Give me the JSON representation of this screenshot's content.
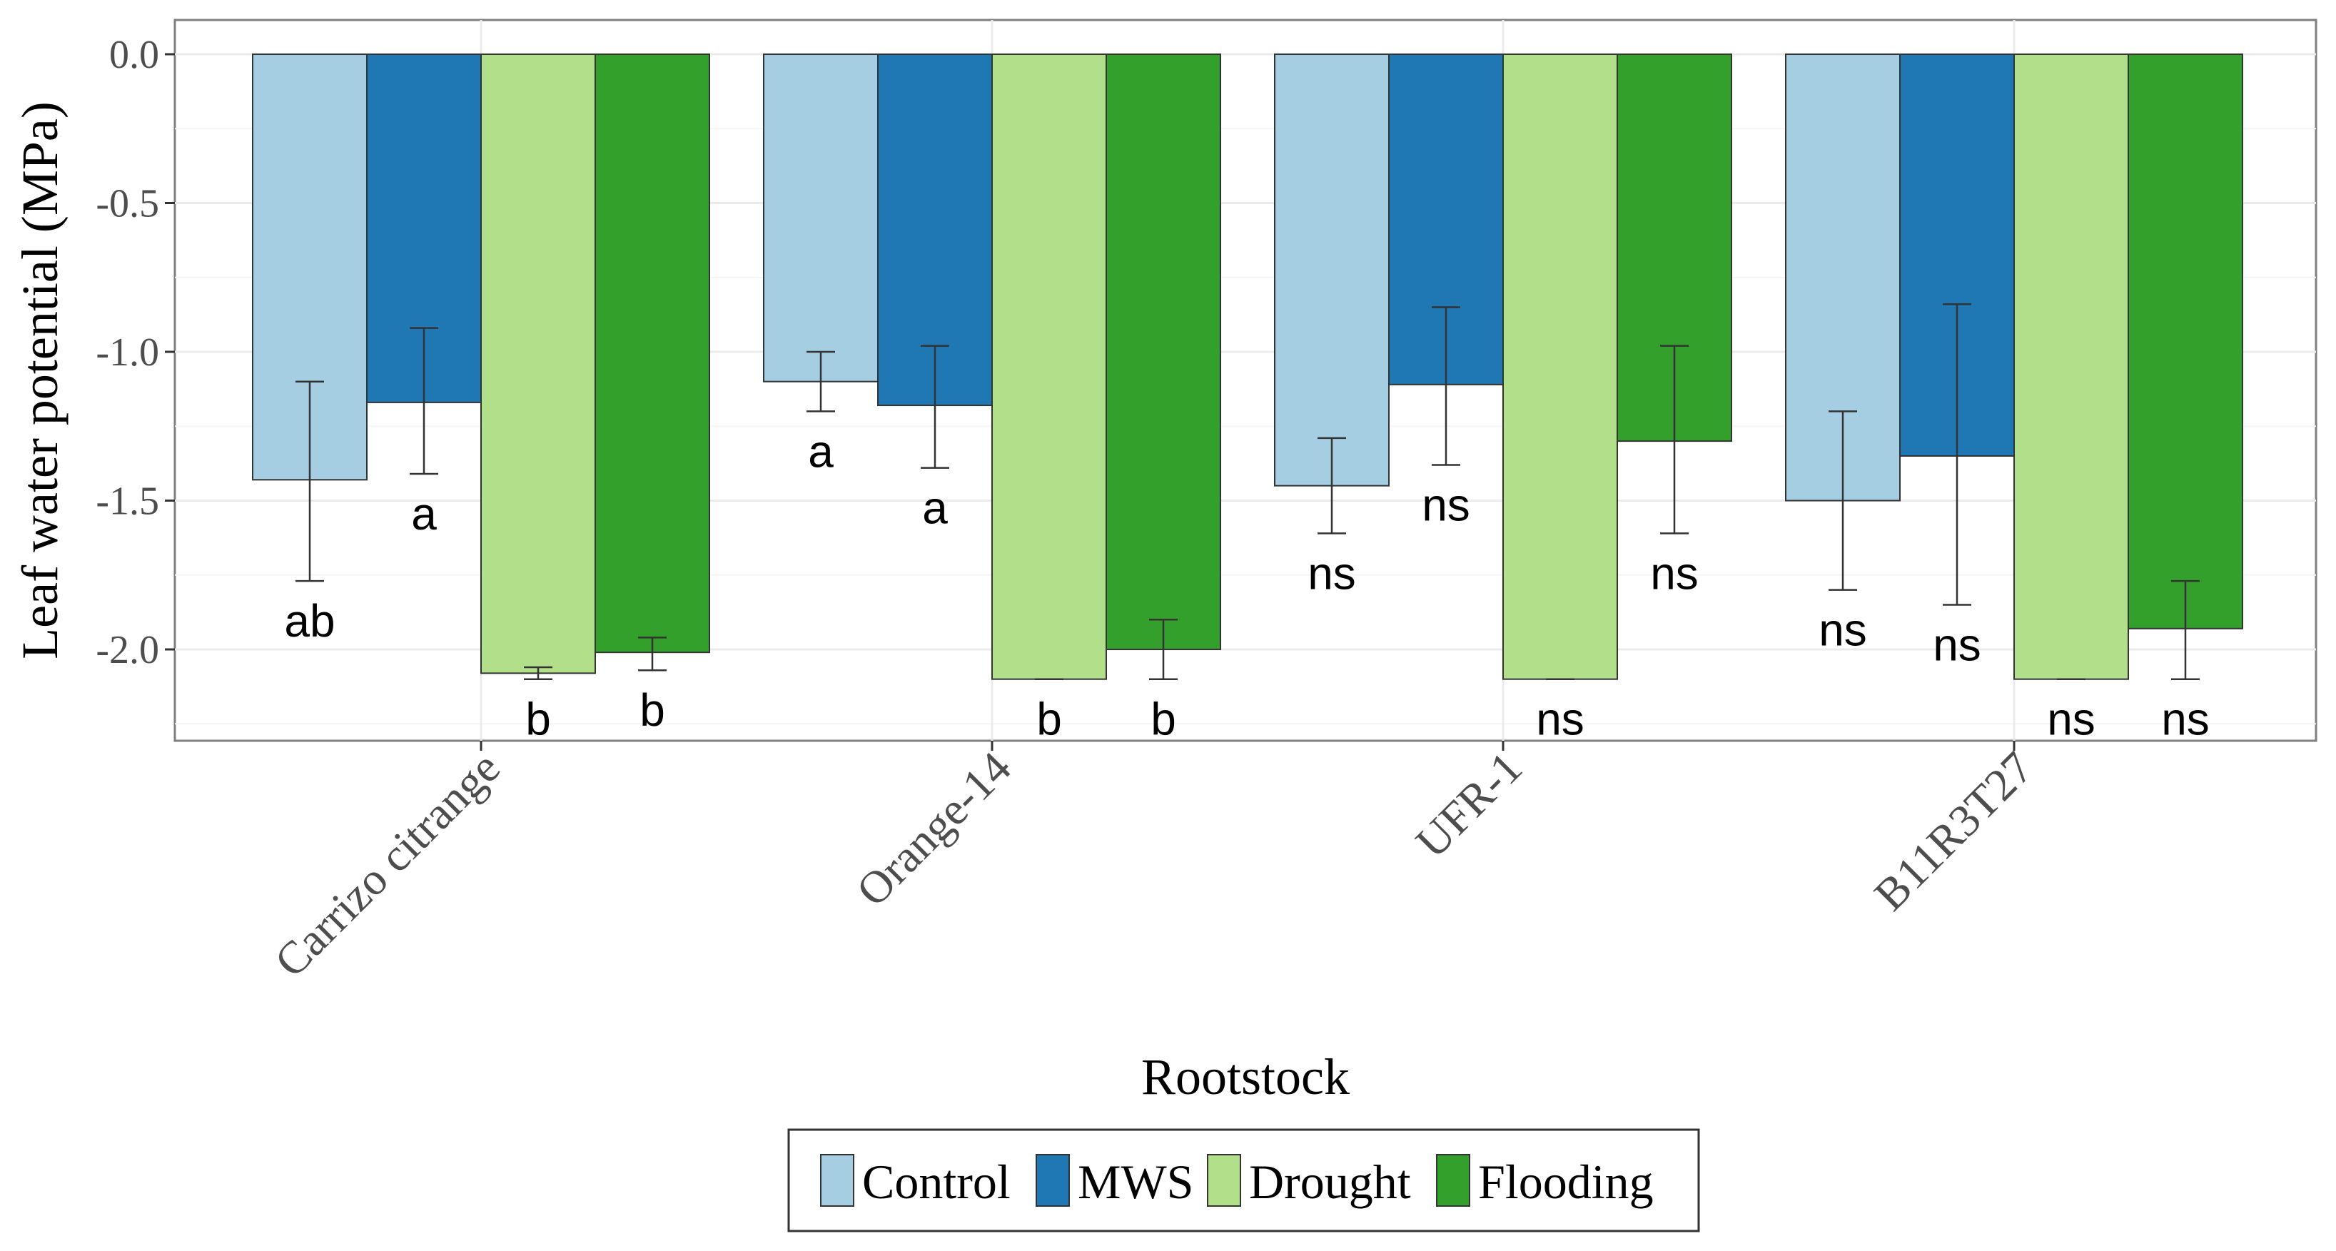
{
  "chart_data": {
    "type": "bar",
    "xlabel": "Rootstock",
    "ylabel": "Leaf water potential (MPa)",
    "ylim": [
      -2.3,
      0.12
    ],
    "yticks": [
      0.0,
      -0.5,
      -1.0,
      -1.5,
      -2.0
    ],
    "ytick_labels": [
      "0.0",
      "-0.5",
      "-1.0",
      "-1.5",
      "-2.0"
    ],
    "grid": true,
    "legend_position": "bottom",
    "categories": [
      "Carrizo citrange",
      "Orange-14",
      "UFR-1",
      "B11R3T27"
    ],
    "series": [
      {
        "name": "Control",
        "color": "#a6cee3",
        "values": [
          -1.43,
          -1.1,
          -1.45,
          -1.5
        ],
        "error_low": [
          -1.77,
          -1.2,
          -1.61,
          -1.8
        ],
        "error_high": [
          -1.1,
          -1.0,
          -1.29,
          -1.2
        ],
        "labels": [
          "ab",
          "a",
          "ns",
          "ns"
        ]
      },
      {
        "name": "MWS",
        "color": "#1f78b4",
        "values": [
          -1.17,
          -1.18,
          -1.11,
          -1.35
        ],
        "error_low": [
          -1.41,
          -1.39,
          -1.38,
          -1.85
        ],
        "error_high": [
          -0.92,
          -0.98,
          -0.85,
          -0.84
        ],
        "labels": [
          "a",
          "a",
          "ns",
          "ns"
        ]
      },
      {
        "name": "Drought",
        "color": "#b2df8a",
        "values": [
          -2.08,
          -2.1,
          -2.1,
          -2.1
        ],
        "error_low": [
          -2.1,
          -2.1,
          -2.1,
          -2.1
        ],
        "error_high": [
          -2.06,
          -2.1,
          -2.1,
          -2.1
        ],
        "labels": [
          "b",
          "b",
          "ns",
          "ns"
        ]
      },
      {
        "name": "Flooding",
        "color": "#33a02c",
        "values": [
          -2.01,
          -2.0,
          -1.3,
          -1.93
        ],
        "error_low": [
          -2.07,
          -2.1,
          -1.61,
          -2.1
        ],
        "error_high": [
          -1.96,
          -1.9,
          -0.98,
          -1.77
        ],
        "labels": [
          "b",
          "b",
          "ns",
          "ns"
        ]
      }
    ]
  }
}
